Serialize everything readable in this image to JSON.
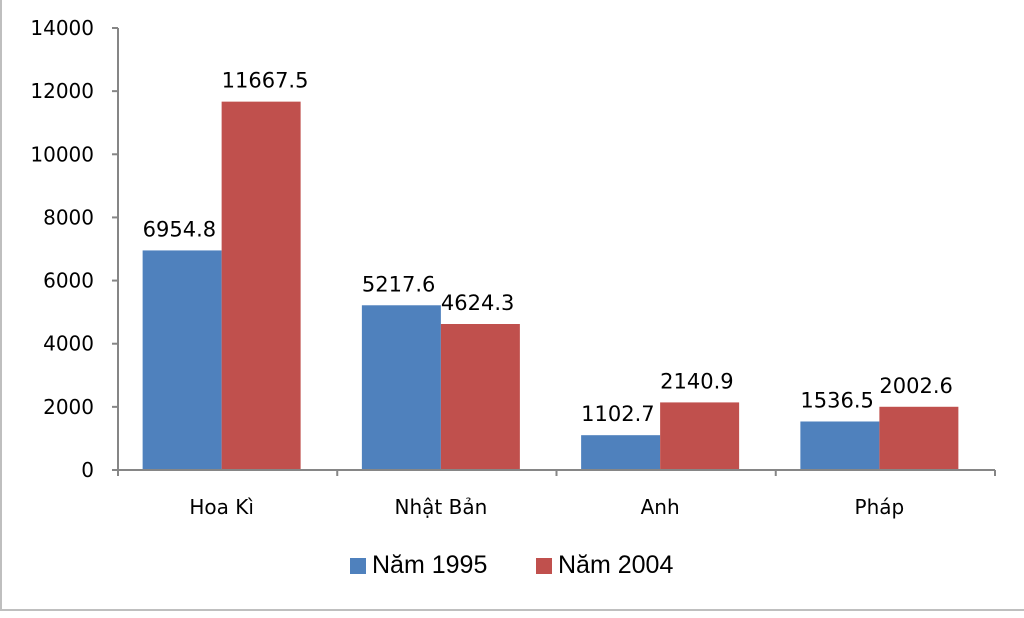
{
  "chart_data": {
    "type": "bar",
    "categories": [
      "Hoa Kì",
      "Nhật Bản",
      "Anh",
      "Pháp"
    ],
    "series": [
      {
        "name": "Năm 1995",
        "color": "#4F81BD",
        "values": [
          6954.8,
          5217.6,
          1102.7,
          1536.5
        ],
        "labels": [
          "6954.8",
          "5217.6",
          "1102.7",
          "1536.5"
        ]
      },
      {
        "name": "Năm 2004",
        "color": "#C0504D",
        "values": [
          11667.5,
          4624.3,
          2140.9,
          2002.6
        ],
        "labels": [
          "11667.5",
          "4624.3",
          "2140.9",
          "2002.6"
        ]
      }
    ],
    "ylim": [
      0,
      14000
    ],
    "yticks": [
      0,
      2000,
      4000,
      6000,
      8000,
      10000,
      12000,
      14000
    ],
    "ytick_labels": [
      "0",
      "2000",
      "4000",
      "6000",
      "8000",
      "10000",
      "12000",
      "14000"
    ],
    "grid": false,
    "legend_position": "bottom",
    "title": "",
    "xlabel": "",
    "ylabel": ""
  }
}
